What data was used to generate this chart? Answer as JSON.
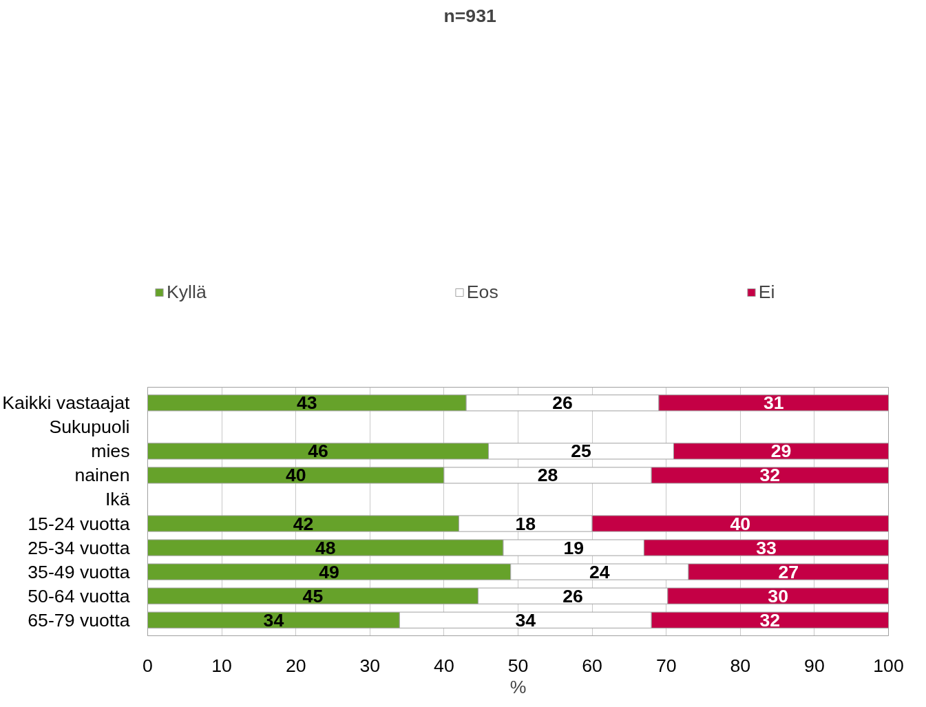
{
  "chart_data": {
    "type": "bar",
    "title": "n=931",
    "xlabel": "%",
    "orientation": "horizontal",
    "stacked": true,
    "grid": "x",
    "legend": "top",
    "categories": [
      "Kaikki vastaajat",
      "Sukupuoli",
      "mies",
      "nainen",
      "Ikä",
      "15-24 vuotta",
      "25-34 vuotta",
      "35-49 vuotta",
      "50-64 vuotta",
      "65-79 vuotta"
    ],
    "series": [
      {
        "name": "Kyllä",
        "color": "#66a22a",
        "values": [
          43,
          null,
          46,
          40,
          null,
          42,
          48,
          49,
          44.6,
          34
        ],
        "value_labels": [
          "43",
          null,
          "46",
          "40",
          null,
          "42",
          "48",
          "49",
          "45",
          "34"
        ]
      },
      {
        "name": "Eos",
        "color": "#ffffff",
        "values": [
          26,
          null,
          25,
          28,
          null,
          18,
          19,
          24,
          25.6,
          34
        ],
        "value_labels": [
          "26",
          null,
          "25",
          "28",
          null,
          "18",
          "19",
          "24",
          "26",
          "34"
        ]
      },
      {
        "name": "Ei",
        "color": "#c40045",
        "values": [
          31,
          null,
          29,
          32,
          null,
          40,
          33,
          27,
          29.8,
          32
        ],
        "value_labels": [
          "31",
          null,
          "29",
          "32",
          null,
          "40",
          "33",
          "27",
          "30",
          "32"
        ]
      }
    ],
    "xlim": [
      0,
      100
    ],
    "xticks": [
      0,
      10,
      20,
      30,
      40,
      50,
      60,
      70,
      80,
      90,
      100
    ]
  }
}
